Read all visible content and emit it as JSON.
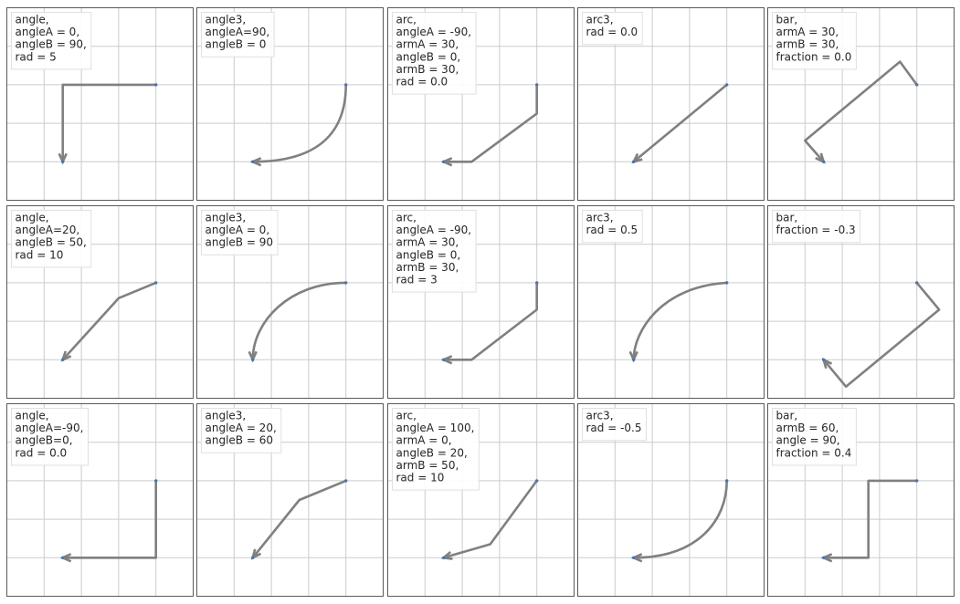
{
  "colors": {
    "arrow": "#808080",
    "point": "#4c72b0",
    "grid": "#cccccc",
    "frame": "#5a5a5a",
    "label_border": "#e0e0e0",
    "label_text": "#262626"
  },
  "chart_data": [
    {
      "type": "line",
      "connection": "angle",
      "label_lines": [
        "angle,",
        "angleA = 0,",
        "angleB = 90,",
        "rad = 5"
      ],
      "points": {
        "x": [
          0.3,
          0.8
        ],
        "y": [
          0.2,
          0.6
        ]
      },
      "path": [
        [
          0.8,
          0.6
        ],
        [
          0.3,
          0.6
        ],
        [
          0.3,
          0.2
        ]
      ],
      "xlim": [
        0,
        1
      ],
      "ylim": [
        0,
        1
      ]
    },
    {
      "type": "line",
      "connection": "angle3",
      "label_lines": [
        "angle3,",
        "angleA=90,",
        "angleB = 0"
      ],
      "points": {
        "x": [
          0.3,
          0.8
        ],
        "y": [
          0.2,
          0.6
        ]
      },
      "path": [
        [
          0.8,
          0.6
        ],
        [
          0.8,
          0.35
        ],
        [
          0.65,
          0.2
        ],
        [
          0.3,
          0.2
        ]
      ],
      "xlim": [
        0,
        1
      ],
      "ylim": [
        0,
        1
      ]
    },
    {
      "type": "line",
      "connection": "arc",
      "label_lines": [
        "arc,",
        "angleA = -90,",
        "armA = 30,",
        "angleB = 0,",
        "armB = 30,",
        "rad = 0.0"
      ],
      "points": {
        "x": [
          0.3,
          0.8
        ],
        "y": [
          0.2,
          0.6
        ]
      },
      "path": [
        [
          0.8,
          0.6
        ],
        [
          0.8,
          0.45
        ],
        [
          0.45,
          0.2
        ],
        [
          0.3,
          0.2
        ]
      ],
      "xlim": [
        0,
        1
      ],
      "ylim": [
        0,
        1
      ]
    },
    {
      "type": "line",
      "connection": "arc3",
      "label_lines": [
        "arc3,",
        "rad = 0.0"
      ],
      "points": {
        "x": [
          0.3,
          0.8
        ],
        "y": [
          0.2,
          0.6
        ]
      },
      "path": [
        [
          0.8,
          0.6
        ],
        [
          0.3,
          0.2
        ]
      ],
      "xlim": [
        0,
        1
      ],
      "ylim": [
        0,
        1
      ]
    },
    {
      "type": "line",
      "connection": "bar",
      "label_lines": [
        "bar,",
        "armA = 30,",
        "armB = 30,",
        "fraction = 0.0"
      ],
      "points": {
        "x": [
          0.3,
          0.8
        ],
        "y": [
          0.2,
          0.6
        ]
      },
      "path": [
        [
          0.8,
          0.6
        ],
        [
          0.71,
          0.72
        ],
        [
          0.2,
          0.31
        ],
        [
          0.3,
          0.2
        ]
      ],
      "xlim": [
        0,
        1
      ],
      "ylim": [
        0,
        1
      ]
    },
    {
      "type": "line",
      "connection": "angle",
      "label_lines": [
        "angle,",
        "angleA=20,",
        "angleB = 50,",
        "rad = 10"
      ],
      "points": {
        "x": [
          0.3,
          0.8
        ],
        "y": [
          0.2,
          0.6
        ]
      },
      "path": [
        [
          0.8,
          0.6
        ],
        [
          0.6,
          0.52
        ],
        [
          0.3,
          0.2
        ]
      ],
      "xlim": [
        0,
        1
      ],
      "ylim": [
        0,
        1
      ]
    },
    {
      "type": "line",
      "connection": "angle3",
      "label_lines": [
        "angle3,",
        "angleA = 0,",
        "angleB = 90"
      ],
      "points": {
        "x": [
          0.3,
          0.8
        ],
        "y": [
          0.2,
          0.6
        ]
      },
      "path": [
        [
          0.8,
          0.6
        ],
        [
          0.5,
          0.6
        ],
        [
          0.3,
          0.4
        ],
        [
          0.3,
          0.2
        ]
      ],
      "xlim": [
        0,
        1
      ],
      "ylim": [
        0,
        1
      ]
    },
    {
      "type": "line",
      "connection": "arc",
      "label_lines": [
        "arc,",
        "angleA = -90,",
        "armA = 30,",
        "angleB = 0,",
        "armB = 30,",
        "rad = 3"
      ],
      "points": {
        "x": [
          0.3,
          0.8
        ],
        "y": [
          0.2,
          0.6
        ]
      },
      "path": [
        [
          0.8,
          0.6
        ],
        [
          0.8,
          0.46
        ],
        [
          0.45,
          0.2
        ],
        [
          0.3,
          0.2
        ]
      ],
      "xlim": [
        0,
        1
      ],
      "ylim": [
        0,
        1
      ]
    },
    {
      "type": "line",
      "connection": "arc3",
      "label_lines": [
        "arc3,",
        "rad = 0.5"
      ],
      "points": {
        "x": [
          0.3,
          0.8
        ],
        "y": [
          0.2,
          0.6
        ]
      },
      "path": [
        [
          0.8,
          0.6
        ],
        [
          0.45,
          0.58
        ],
        [
          0.3,
          0.35
        ],
        [
          0.3,
          0.2
        ]
      ],
      "xlim": [
        0,
        1
      ],
      "ylim": [
        0,
        1
      ]
    },
    {
      "type": "line",
      "connection": "bar",
      "label_lines": [
        "bar,",
        "fraction = -0.3"
      ],
      "points": {
        "x": [
          0.3,
          0.8
        ],
        "y": [
          0.2,
          0.6
        ]
      },
      "path": [
        [
          0.8,
          0.6
        ],
        [
          0.92,
          0.46
        ],
        [
          0.42,
          0.06
        ],
        [
          0.3,
          0.2
        ]
      ],
      "xlim": [
        0,
        1
      ],
      "ylim": [
        0,
        1
      ]
    },
    {
      "type": "line",
      "connection": "angle",
      "label_lines": [
        "angle,",
        "angleA=-90,",
        "angleB=0,",
        "rad = 0.0"
      ],
      "points": {
        "x": [
          0.3,
          0.8
        ],
        "y": [
          0.2,
          0.6
        ]
      },
      "path": [
        [
          0.8,
          0.6
        ],
        [
          0.8,
          0.2
        ],
        [
          0.3,
          0.2
        ]
      ],
      "xlim": [
        0,
        1
      ],
      "ylim": [
        0,
        1
      ]
    },
    {
      "type": "line",
      "connection": "angle3",
      "label_lines": [
        "angle3,",
        "angleA = 20,",
        "angleB = 60"
      ],
      "points": {
        "x": [
          0.3,
          0.8
        ],
        "y": [
          0.2,
          0.6
        ]
      },
      "path": [
        [
          0.8,
          0.6
        ],
        [
          0.55,
          0.5
        ],
        [
          0.3,
          0.2
        ]
      ],
      "xlim": [
        0,
        1
      ],
      "ylim": [
        0,
        1
      ]
    },
    {
      "type": "line",
      "connection": "arc",
      "label_lines": [
        "arc,",
        "angleA = 100,",
        "armA = 0,",
        "angleB = 20,",
        "armB = 50,",
        "rad = 10"
      ],
      "points": {
        "x": [
          0.3,
          0.8
        ],
        "y": [
          0.2,
          0.6
        ]
      },
      "path": [
        [
          0.8,
          0.6
        ],
        [
          0.55,
          0.27
        ],
        [
          0.3,
          0.2
        ]
      ],
      "xlim": [
        0,
        1
      ],
      "ylim": [
        0,
        1
      ]
    },
    {
      "type": "line",
      "connection": "arc3",
      "label_lines": [
        "arc3,",
        "rad = -0.5"
      ],
      "points": {
        "x": [
          0.3,
          0.8
        ],
        "y": [
          0.2,
          0.6
        ]
      },
      "path": [
        [
          0.8,
          0.6
        ],
        [
          0.8,
          0.4
        ],
        [
          0.65,
          0.2
        ],
        [
          0.3,
          0.2
        ]
      ],
      "xlim": [
        0,
        1
      ],
      "ylim": [
        0,
        1
      ]
    },
    {
      "type": "line",
      "connection": "bar",
      "label_lines": [
        "bar,",
        "armB = 60,",
        "angle = 90,",
        "fraction = 0.4"
      ],
      "points": {
        "x": [
          0.3,
          0.8
        ],
        "y": [
          0.2,
          0.6
        ]
      },
      "path": [
        [
          0.8,
          0.6
        ],
        [
          0.54,
          0.6
        ],
        [
          0.54,
          0.2
        ],
        [
          0.3,
          0.2
        ]
      ],
      "xlim": [
        0,
        1
      ],
      "ylim": [
        0,
        1
      ]
    }
  ]
}
